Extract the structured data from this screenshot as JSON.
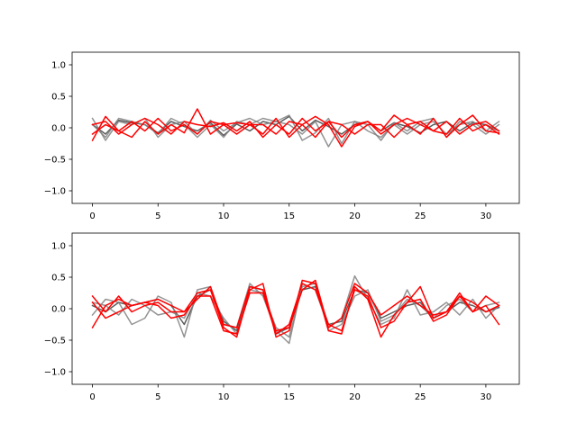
{
  "chart_data": [
    {
      "type": "line",
      "title": "",
      "xlabel": "",
      "ylabel": "",
      "xlim": [
        -1.55,
        32.55
      ],
      "ylim": [
        -1.2,
        1.2
      ],
      "xticks": [
        0,
        5,
        10,
        15,
        20,
        25,
        30
      ],
      "yticks": [
        -1.0,
        -0.5,
        0.0,
        0.5,
        1.0
      ],
      "xtick_labels": [
        "0",
        "5",
        "10",
        "15",
        "20",
        "25",
        "30"
      ],
      "ytick_labels": [
        "−1.0",
        "−0.5",
        "0.0",
        "0.5",
        "1.0"
      ],
      "grid": false,
      "series": [
        {
          "color": "#404040",
          "values": [
            0.05,
            -0.1,
            0.12,
            0.08,
            0.05,
            -0.08,
            0.1,
            0.02,
            -0.05,
            0.08,
            -0.12,
            0.06,
            -0.05,
            0.1,
            0.05,
            0.18,
            -0.05,
            0.12,
            0.02,
            -0.1,
            0.05,
            0.1,
            -0.05,
            0.08,
            0.02,
            -0.08,
            0.05,
            0.1,
            -0.05,
            0.08,
            0.05,
            -0.05
          ]
        },
        {
          "color": "#808080",
          "values": [
            0.15,
            -0.2,
            0.1,
            0.05,
            0.15,
            -0.15,
            0.05,
            0.1,
            -0.1,
            0.12,
            -0.05,
            0.08,
            0.15,
            0.05,
            0.1,
            0.2,
            -0.2,
            -0.08,
            0.15,
            -0.25,
            0.1,
            0.05,
            -0.2,
            0.08,
            -0.05,
            0.1,
            0.15,
            -0.15,
            0.1,
            0.05,
            -0.1,
            0.05
          ]
        },
        {
          "color": "#808080",
          "values": [
            0.05,
            -0.15,
            0.15,
            0.1,
            0.05,
            -0.1,
            0.15,
            0.05,
            -0.15,
            0.05,
            -0.15,
            0.1,
            0.05,
            0.15,
            0.1,
            0.05,
            -0.1,
            0.1,
            -0.3,
            0.05,
            0.1,
            -0.05,
            -0.15,
            0.05,
            -0.1,
            0.05,
            0.1,
            -0.1,
            0.05,
            0.1,
            -0.05,
            0.1
          ]
        },
        {
          "color": "#ff0000",
          "values": [
            -0.2,
            0.18,
            -0.05,
            -0.15,
            0.1,
            -0.1,
            0.05,
            -0.08,
            0.3,
            -0.1,
            0.05,
            0.08,
            0.05,
            -0.1,
            0.15,
            -0.15,
            0.05,
            0.18,
            0.05,
            -0.3,
            0.02,
            0.1,
            -0.05,
            0.2,
            0.05,
            -0.1,
            0.15,
            -0.15,
            0.05,
            0.2,
            -0.05,
            -0.08
          ]
        },
        {
          "color": "#ff0000",
          "values": [
            0.05,
            0.1,
            -0.1,
            0.05,
            0.15,
            0.05,
            -0.1,
            0.1,
            0.05,
            0.02,
            0.08,
            -0.05,
            0.1,
            -0.15,
            0.05,
            -0.1,
            0.15,
            -0.05,
            0.1,
            -0.15,
            0.05,
            0.1,
            -0.1,
            0.05,
            0.15,
            0.05,
            -0.05,
            0.1,
            -0.1,
            0.05,
            0.1,
            -0.05
          ]
        },
        {
          "color": "#ff0000",
          "values": [
            -0.1,
            0.05,
            -0.05,
            0.1,
            -0.05,
            0.15,
            -0.05,
            0.05,
            -0.1,
            0.1,
            0.05,
            -0.1,
            0.05,
            0.05,
            -0.1,
            0.1,
            0.05,
            -0.15,
            0.1,
            0.05,
            -0.1,
            0.05,
            0.05,
            -0.15,
            0.05,
            0.1,
            -0.05,
            -0.1,
            0.15,
            -0.05,
            0.05,
            -0.1
          ]
        }
      ]
    },
    {
      "type": "line",
      "title": "",
      "xlabel": "",
      "ylabel": "",
      "xlim": [
        -1.55,
        32.55
      ],
      "ylim": [
        -1.2,
        1.2
      ],
      "xticks": [
        0,
        5,
        10,
        15,
        20,
        25,
        30
      ],
      "yticks": [
        -1.0,
        -0.5,
        0.0,
        0.5,
        1.0
      ],
      "xtick_labels": [
        "0",
        "5",
        "10",
        "15",
        "20",
        "25",
        "30"
      ],
      "ytick_labels": [
        "−1.0",
        "−0.5",
        "0.0",
        "0.5",
        "1.0"
      ],
      "grid": false,
      "series": [
        {
          "color": "#404040",
          "values": [
            0.05,
            -0.05,
            0.1,
            0.05,
            0.1,
            0.15,
            0.05,
            -0.25,
            0.2,
            0.3,
            -0.2,
            -0.35,
            0.35,
            0.3,
            -0.4,
            -0.3,
            0.3,
            0.35,
            -0.25,
            -0.2,
            0.3,
            0.25,
            -0.15,
            -0.05,
            0.05,
            0.1,
            -0.15,
            -0.05,
            0.1,
            0.05,
            -0.05,
            0.02
          ]
        },
        {
          "color": "#808080",
          "values": [
            -0.1,
            0.15,
            0.1,
            -0.25,
            -0.15,
            0.2,
            0.1,
            -0.45,
            0.3,
            0.35,
            -0.25,
            -0.3,
            0.4,
            0.2,
            -0.35,
            -0.55,
            0.4,
            0.3,
            -0.3,
            -0.15,
            0.52,
            0.15,
            -0.25,
            -0.15,
            0.3,
            -0.1,
            -0.05,
            0.1,
            -0.1,
            0.15,
            -0.15,
            0.05
          ]
        },
        {
          "color": "#808080",
          "values": [
            0.1,
            0.05,
            -0.1,
            0.15,
            0.05,
            -0.1,
            -0.05,
            -0.15,
            0.25,
            0.2,
            -0.15,
            -0.4,
            0.3,
            0.25,
            -0.3,
            -0.45,
            0.35,
            0.4,
            -0.35,
            -0.25,
            0.2,
            0.3,
            -0.2,
            -0.1,
            0.15,
            0.05,
            -0.15,
            0.05,
            0.15,
            -0.05,
            0.05,
            0.1
          ]
        },
        {
          "color": "#ff0000",
          "values": [
            0.2,
            -0.05,
            0.2,
            -0.05,
            0.05,
            0.1,
            -0.05,
            -0.05,
            0.25,
            0.3,
            -0.3,
            -0.45,
            0.3,
            0.4,
            -0.45,
            -0.35,
            0.45,
            0.4,
            -0.35,
            -0.4,
            0.35,
            0.15,
            -0.45,
            -0.1,
            0.1,
            0.35,
            -0.15,
            -0.05,
            0.25,
            -0.05,
            0.05,
            -0.25
          ]
        },
        {
          "color": "#ff0000",
          "values": [
            -0.3,
            0.05,
            0.15,
            0.05,
            0.1,
            0.05,
            -0.15,
            -0.1,
            0.2,
            0.2,
            -0.35,
            -0.4,
            0.25,
            0.25,
            -0.4,
            -0.25,
            0.4,
            0.3,
            -0.25,
            -0.35,
            0.3,
            0.2,
            -0.3,
            -0.2,
            0.1,
            0.15,
            -0.2,
            -0.1,
            0.2,
            -0.05,
            0.2,
            0.05
          ]
        },
        {
          "color": "#ff0000",
          "values": [
            0.1,
            -0.15,
            -0.05,
            0.05,
            0.1,
            0.15,
            0.05,
            -0.05,
            0.15,
            0.35,
            -0.25,
            -0.3,
            0.35,
            0.3,
            -0.35,
            -0.3,
            0.3,
            0.45,
            -0.3,
            -0.15,
            0.4,
            0.25,
            -0.1,
            0.05,
            0.2,
            0.05,
            -0.1,
            -0.05,
            0.2,
            0.1,
            -0.05,
            0.05
          ]
        }
      ]
    }
  ]
}
